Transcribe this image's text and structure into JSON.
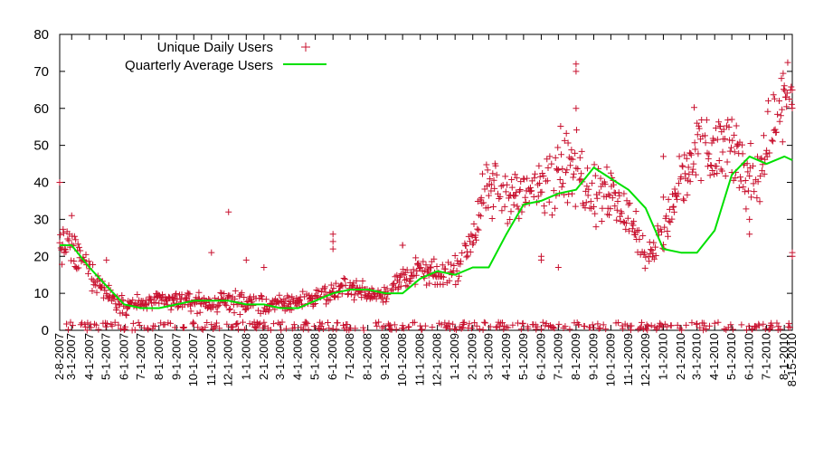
{
  "chart_data": {
    "type": "scatter",
    "title": "",
    "xlabel": "",
    "ylabel": "",
    "ylim": [
      0,
      80
    ],
    "yticks": [
      0,
      10,
      20,
      30,
      40,
      50,
      60,
      70,
      80
    ],
    "grid": false,
    "legend_position": "top-left",
    "x_tick_labels": [
      "2-8-2007",
      "3-1-2007",
      "4-1-2007",
      "5-1-2007",
      "6-1-2007",
      "7-1-2007",
      "8-1-2007",
      "9-1-2007",
      "10-1-2007",
      "11-1-2007",
      "12-1-2007",
      "1-1-2008",
      "2-1-2008",
      "3-1-2008",
      "4-1-2008",
      "5-1-2008",
      "6-1-2008",
      "7-1-2008",
      "8-1-2008",
      "9-1-2008",
      "10-1-2008",
      "11-1-2008",
      "12-1-2008",
      "1-1-2009",
      "2-1-2009",
      "3-1-2009",
      "4-1-2009",
      "5-1-2009",
      "6-1-2009",
      "7-1-2009",
      "8-1-2009",
      "9-1-2009",
      "10-1-2009",
      "11-1-2009",
      "12-1-2009",
      "1-1-2010",
      "2-1-2010",
      "3-1-2010",
      "4-1-2010",
      "5-1-2010",
      "6-1-2010",
      "7-1-2010",
      "8-1-2010",
      "8-15-2010"
    ],
    "series": [
      {
        "name": "Unique Daily Users",
        "kind": "scatter",
        "marker": "+",
        "color": "#c8102e",
        "trend": [
          [
            "2-8-2007",
            24
          ],
          [
            "3-1-2007",
            22
          ],
          [
            "4-1-2007",
            16
          ],
          [
            "5-1-2007",
            10
          ],
          [
            "6-1-2007",
            7
          ],
          [
            "7-1-2007",
            7
          ],
          [
            "8-1-2007",
            8
          ],
          [
            "9-1-2007",
            8
          ],
          [
            "10-1-2007",
            8
          ],
          [
            "11-1-2007",
            7
          ],
          [
            "12-1-2007",
            8
          ],
          [
            "1-1-2008",
            7
          ],
          [
            "2-1-2008",
            7
          ],
          [
            "3-1-2008",
            7
          ],
          [
            "4-1-2008",
            8
          ],
          [
            "5-1-2008",
            9
          ],
          [
            "6-1-2008",
            10
          ],
          [
            "7-1-2008",
            12
          ],
          [
            "8-1-2008",
            10
          ],
          [
            "9-1-2008",
            10
          ],
          [
            "10-1-2008",
            14
          ],
          [
            "11-1-2008",
            16
          ],
          [
            "12-1-2008",
            15
          ],
          [
            "1-1-2009",
            16
          ],
          [
            "2-1-2009",
            26
          ],
          [
            "3-1-2009",
            38
          ],
          [
            "4-1-2009",
            38
          ],
          [
            "5-1-2009",
            35
          ],
          [
            "6-1-2009",
            40
          ],
          [
            "7-1-2009",
            46
          ],
          [
            "8-1-2009",
            44
          ],
          [
            "9-1-2009",
            38
          ],
          [
            "10-1-2009",
            38
          ],
          [
            "11-1-2009",
            30
          ],
          [
            "12-1-2009",
            20
          ],
          [
            "1-1-2010",
            26
          ],
          [
            "2-1-2010",
            40
          ],
          [
            "3-1-2010",
            48
          ],
          [
            "4-1-2010",
            48
          ],
          [
            "5-1-2010",
            48
          ],
          [
            "6-1-2010",
            40
          ],
          [
            "7-1-2010",
            50
          ],
          [
            "8-1-2010",
            60
          ],
          [
            "8-15-2010",
            62
          ]
        ],
        "outliers": [
          [
            "2-8-2007",
            40
          ],
          [
            "3-1-2007",
            31
          ],
          [
            "5-1-2007",
            19
          ],
          [
            "11-1-2007",
            21
          ],
          [
            "12-1-2007",
            32
          ],
          [
            "1-1-2008",
            19
          ],
          [
            "2-1-2008",
            17
          ],
          [
            "6-1-2008",
            26
          ],
          [
            "6-1-2008",
            24
          ],
          [
            "6-1-2008",
            22
          ],
          [
            "10-1-2008",
            23
          ],
          [
            "10-1-2008",
            23
          ],
          [
            "6-1-2009",
            20
          ],
          [
            "6-1-2009",
            19
          ],
          [
            "7-1-2009",
            17
          ],
          [
            "8-1-2009",
            72
          ],
          [
            "8-1-2009",
            70
          ],
          [
            "8-1-2009",
            60
          ],
          [
            "1-1-2010",
            47
          ],
          [
            "1-1-2010",
            36
          ],
          [
            "3-1-2010",
            56
          ],
          [
            "5-1-2010",
            57
          ],
          [
            "6-1-2010",
            26
          ],
          [
            "6-1-2010",
            30
          ],
          [
            "8-15-2010",
            65
          ],
          [
            "8-15-2010",
            20
          ],
          [
            "8-15-2010",
            21
          ]
        ]
      },
      {
        "name": "Quarterly Average Users",
        "kind": "line",
        "color": "#00e000",
        "points": [
          [
            "2-8-2007",
            23
          ],
          [
            "3-1-2007",
            23
          ],
          [
            "4-1-2007",
            17
          ],
          [
            "5-1-2007",
            12
          ],
          [
            "6-1-2007",
            7
          ],
          [
            "7-1-2007",
            6
          ],
          [
            "8-1-2007",
            6
          ],
          [
            "9-1-2007",
            7
          ],
          [
            "10-1-2007",
            8
          ],
          [
            "11-1-2007",
            8
          ],
          [
            "12-1-2007",
            8
          ],
          [
            "1-1-2008",
            7
          ],
          [
            "2-1-2008",
            7
          ],
          [
            "3-1-2008",
            6
          ],
          [
            "4-1-2008",
            6
          ],
          [
            "5-1-2008",
            8
          ],
          [
            "6-1-2008",
            10
          ],
          [
            "7-1-2008",
            11
          ],
          [
            "8-1-2008",
            11
          ],
          [
            "9-1-2008",
            10
          ],
          [
            "10-1-2008",
            10
          ],
          [
            "11-1-2008",
            14
          ],
          [
            "12-1-2008",
            16
          ],
          [
            "1-1-2009",
            15
          ],
          [
            "2-1-2009",
            17
          ],
          [
            "3-1-2009",
            17
          ],
          [
            "4-1-2009",
            26
          ],
          [
            "5-1-2009",
            34
          ],
          [
            "6-1-2009",
            35
          ],
          [
            "7-1-2009",
            37
          ],
          [
            "8-1-2009",
            38
          ],
          [
            "9-1-2009",
            44
          ],
          [
            "10-1-2009",
            41
          ],
          [
            "11-1-2009",
            38
          ],
          [
            "12-1-2009",
            33
          ],
          [
            "1-1-2010",
            22
          ],
          [
            "2-1-2010",
            21
          ],
          [
            "3-1-2010",
            21
          ],
          [
            "4-1-2010",
            27
          ],
          [
            "5-1-2010",
            42
          ],
          [
            "6-1-2010",
            47
          ],
          [
            "7-1-2010",
            45
          ],
          [
            "8-1-2010",
            47
          ],
          [
            "8-15-2010",
            46
          ]
        ]
      }
    ]
  }
}
